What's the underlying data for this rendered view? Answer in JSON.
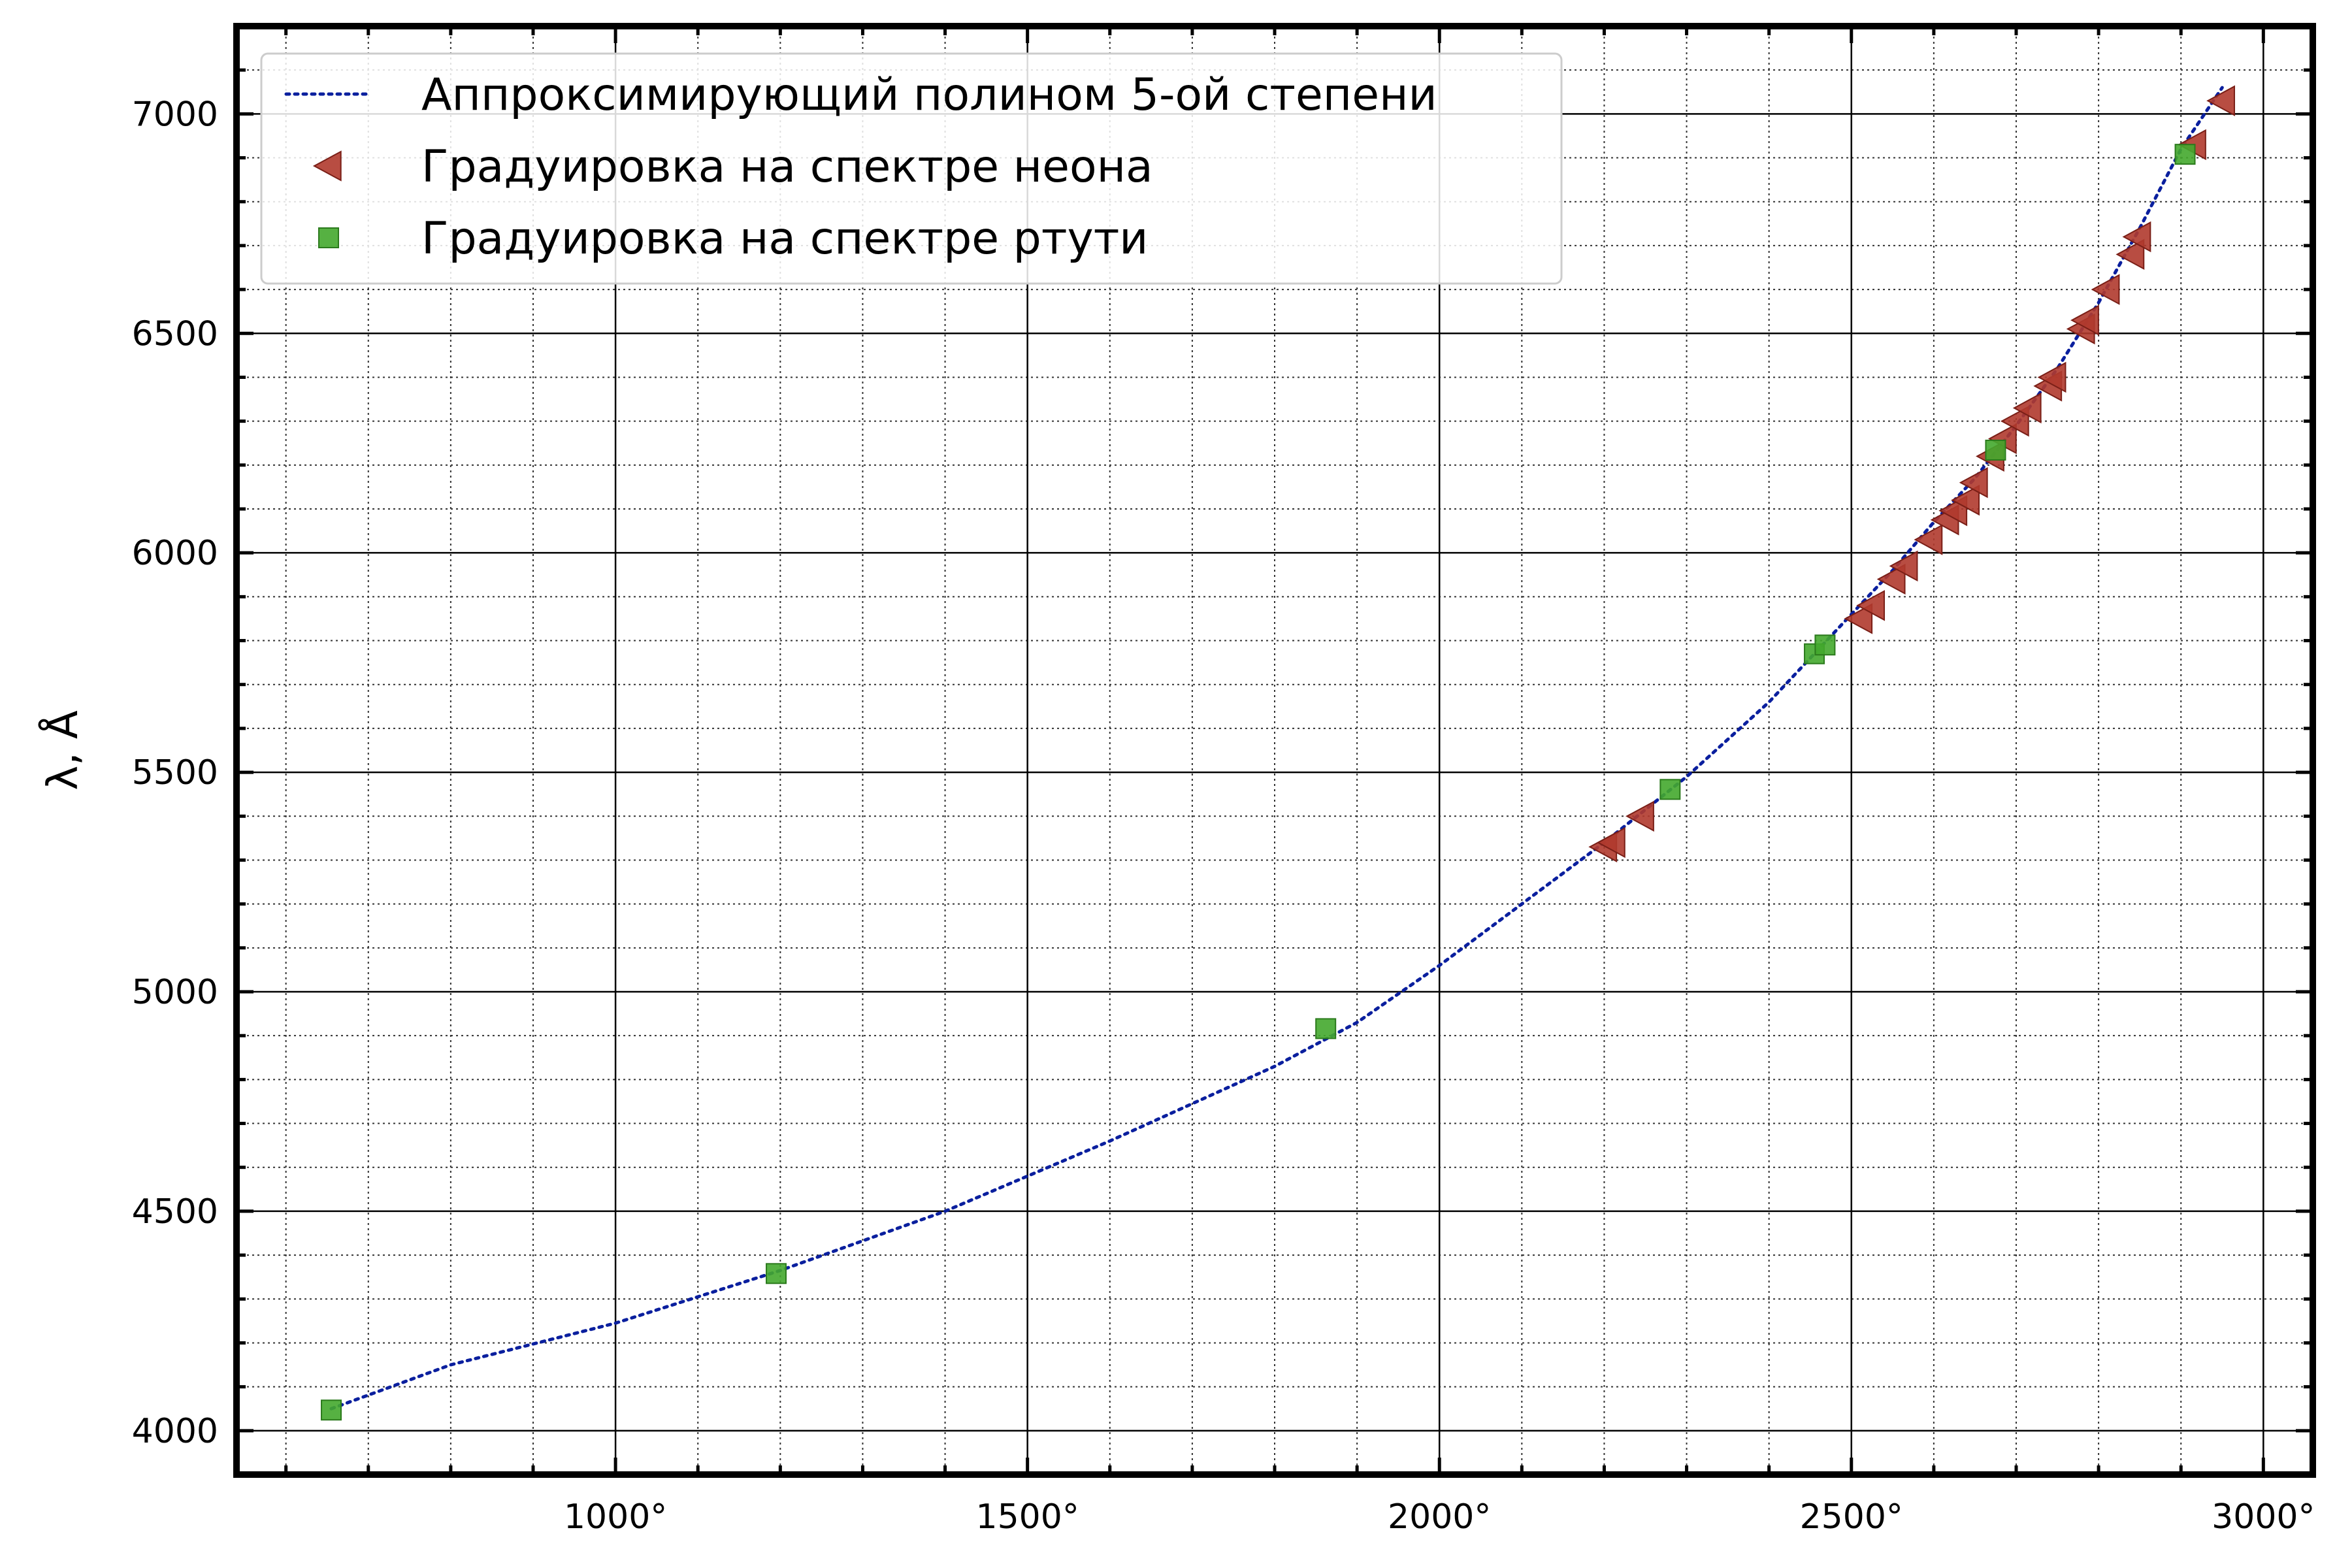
{
  "chart_data": {
    "type": "scatter",
    "title": "",
    "xlabel": "",
    "ylabel": "λ, Å",
    "xlim": [
      540,
      3060
    ],
    "ylim": [
      3900,
      7200
    ],
    "x_ticks": [
      {
        "value": 1000,
        "label": "1000°"
      },
      {
        "value": 1500,
        "label": "1500°"
      },
      {
        "value": 2000,
        "label": "2000°"
      },
      {
        "value": 2500,
        "label": "2500°"
      },
      {
        "value": 3000,
        "label": "3000°"
      }
    ],
    "y_ticks": [
      {
        "value": 4000,
        "label": "4000"
      },
      {
        "value": 4500,
        "label": "4500"
      },
      {
        "value": 5000,
        "label": "5000"
      },
      {
        "value": 5500,
        "label": "5500"
      },
      {
        "value": 6000,
        "label": "6000"
      },
      {
        "value": 6500,
        "label": "6500"
      },
      {
        "value": 7000,
        "label": "7000"
      }
    ],
    "grid": true,
    "legend_position": "top-left",
    "series": [
      {
        "name": "Аппроксимирующий полином 5-ой степени",
        "kind": "line",
        "style": "dotted",
        "color": "#0a1f9e",
        "x": [
          655,
          800,
          1000,
          1200,
          1400,
          1600,
          1800,
          1900,
          2000,
          2100,
          2200,
          2300,
          2400,
          2450,
          2500,
          2550,
          2600,
          2650,
          2700,
          2750,
          2800,
          2850,
          2900,
          2950
        ],
        "y": [
          4050,
          4150,
          4245,
          4365,
          4500,
          4660,
          4830,
          4930,
          5060,
          5200,
          5340,
          5490,
          5660,
          5760,
          5860,
          5960,
          6070,
          6170,
          6290,
          6420,
          6570,
          6740,
          6920,
          7060
        ]
      },
      {
        "name": "Градуировка на спектре неона",
        "kind": "scatter",
        "marker": "triangle-left",
        "color": "#b03a2e",
        "x": [
          2200,
          2210,
          2245,
          2510,
          2525,
          2550,
          2565,
          2595,
          2615,
          2625,
          2640,
          2650,
          2670,
          2685,
          2700,
          2715,
          2740,
          2745,
          2780,
          2785,
          2810,
          2840,
          2848,
          2915,
          2950
        ],
        "y": [
          5330,
          5340,
          5400,
          5850,
          5880,
          5940,
          5970,
          6030,
          6075,
          6096,
          6120,
          6160,
          6220,
          6260,
          6300,
          6330,
          6380,
          6400,
          6510,
          6530,
          6600,
          6680,
          6720,
          6930,
          7030
        ]
      },
      {
        "name": "Градуировка на спектре ртути",
        "kind": "scatter",
        "marker": "square",
        "color": "#44a82e",
        "x": [
          655,
          1195,
          1862,
          2280,
          2455,
          2468,
          2675,
          2905
        ],
        "y": [
          4047,
          4358,
          4916,
          5461,
          5770,
          5790,
          6234,
          6908
        ]
      }
    ]
  }
}
